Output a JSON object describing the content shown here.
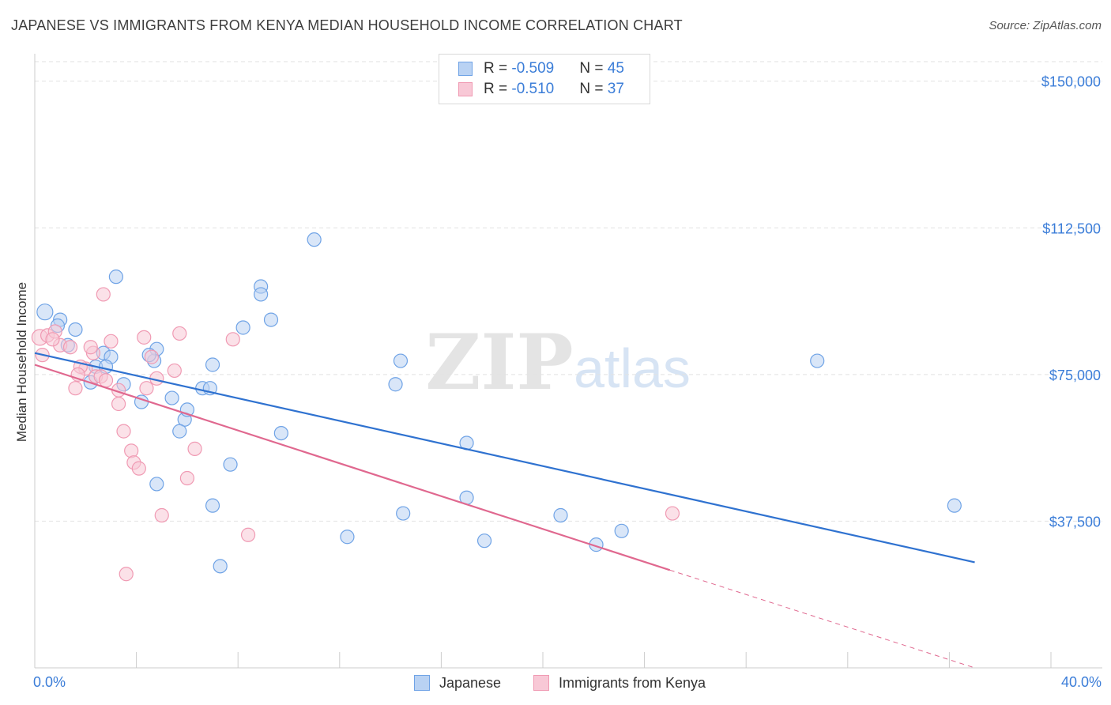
{
  "title": "JAPANESE VS IMMIGRANTS FROM KENYA MEDIAN HOUSEHOLD INCOME CORRELATION CHART",
  "source": "Source: ZipAtlas.com",
  "watermark": {
    "zip": "ZIP",
    "atlas": "atlas"
  },
  "legend_top": {
    "rows": [
      {
        "r_label": "R = ",
        "r_value": "-0.509",
        "n_label": "N = ",
        "n_value": "45"
      },
      {
        "r_label": "R = ",
        "r_value": "-0.510",
        "n_label": "N = ",
        "n_value": "37"
      }
    ]
  },
  "chart_data": {
    "type": "scatter",
    "title": "JAPANESE VS IMMIGRANTS FROM KENYA MEDIAN HOUSEHOLD INCOME CORRELATION CHART",
    "xlabel": "",
    "ylabel": "Median Household Income",
    "xlim": [
      0,
      40
    ],
    "ylim": [
      0,
      155000
    ],
    "x_tick_labels": [
      "0.0%",
      "40.0%"
    ],
    "y_ticks": [
      37500,
      75000,
      112500,
      150000
    ],
    "y_tick_labels": [
      "$37,500",
      "$75,000",
      "$112,500",
      "$150,000"
    ],
    "grid": true,
    "legend_position": "bottom-center",
    "series": [
      {
        "name": "Japanese",
        "color": "#6fa3e6",
        "fill": "#b9d2f3",
        "points": [
          [
            0.4,
            91000
          ],
          [
            1.0,
            89000
          ],
          [
            1.6,
            86500
          ],
          [
            1.3,
            82500
          ],
          [
            0.9,
            87500
          ],
          [
            3.2,
            100000
          ],
          [
            2.7,
            80500
          ],
          [
            3.0,
            79500
          ],
          [
            4.8,
            81500
          ],
          [
            4.7,
            78500
          ],
          [
            4.2,
            68000
          ],
          [
            4.5,
            80000
          ],
          [
            2.4,
            77000
          ],
          [
            2.8,
            77000
          ],
          [
            3.5,
            72500
          ],
          [
            5.4,
            69000
          ],
          [
            5.9,
            63500
          ],
          [
            6.6,
            71500
          ],
          [
            6.0,
            66000
          ],
          [
            6.9,
            71500
          ],
          [
            7.0,
            77500
          ],
          [
            8.2,
            87000
          ],
          [
            8.9,
            97500
          ],
          [
            8.9,
            95500
          ],
          [
            9.3,
            89000
          ],
          [
            11.0,
            109500
          ],
          [
            9.7,
            60000
          ],
          [
            5.7,
            60500
          ],
          [
            7.7,
            52000
          ],
          [
            4.8,
            47000
          ],
          [
            7.0,
            41500
          ],
          [
            7.3,
            26000
          ],
          [
            12.3,
            33500
          ],
          [
            14.4,
            78500
          ],
          [
            14.2,
            72500
          ],
          [
            17.0,
            57500
          ],
          [
            17.0,
            43500
          ],
          [
            14.5,
            39500
          ],
          [
            17.7,
            32500
          ],
          [
            20.7,
            39000
          ],
          [
            22.1,
            31500
          ],
          [
            23.1,
            35000
          ],
          [
            30.8,
            78500
          ],
          [
            36.2,
            41500
          ],
          [
            2.2,
            73000
          ]
        ]
      },
      {
        "name": "Immigrants from Kenya",
        "color": "#f09ab3",
        "fill": "#f8c8d6",
        "points": [
          [
            0.2,
            84500
          ],
          [
            0.5,
            85000
          ],
          [
            0.8,
            86000
          ],
          [
            1.0,
            82500
          ],
          [
            1.4,
            82000
          ],
          [
            0.7,
            84000
          ],
          [
            2.0,
            76500
          ],
          [
            2.4,
            74500
          ],
          [
            1.8,
            77000
          ],
          [
            1.6,
            71500
          ],
          [
            2.3,
            80500
          ],
          [
            2.6,
            74500
          ],
          [
            2.8,
            73500
          ],
          [
            3.0,
            83500
          ],
          [
            3.3,
            71000
          ],
          [
            3.5,
            60500
          ],
          [
            3.8,
            55500
          ],
          [
            3.9,
            52500
          ],
          [
            4.1,
            51000
          ],
          [
            4.3,
            84500
          ],
          [
            4.6,
            79500
          ],
          [
            4.8,
            74000
          ],
          [
            5.5,
            76000
          ],
          [
            5.7,
            85500
          ],
          [
            6.0,
            48500
          ],
          [
            6.3,
            56000
          ],
          [
            7.8,
            84000
          ],
          [
            8.4,
            34000
          ],
          [
            5.0,
            39000
          ],
          [
            3.6,
            24000
          ],
          [
            2.7,
            95500
          ],
          [
            3.3,
            67500
          ],
          [
            2.2,
            82000
          ],
          [
            1.7,
            75000
          ],
          [
            25.1,
            39500
          ],
          [
            0.3,
            80000
          ],
          [
            4.4,
            71500
          ]
        ]
      }
    ],
    "trendlines": [
      {
        "series": "Japanese",
        "x": [
          0,
          37
        ],
        "y": [
          80500,
          27000
        ]
      },
      {
        "series": "Immigrants from Kenya",
        "x": [
          0,
          25
        ],
        "y": [
          77500,
          25000
        ],
        "dashed_extension_to": [
          37,
          0
        ]
      }
    ]
  }
}
